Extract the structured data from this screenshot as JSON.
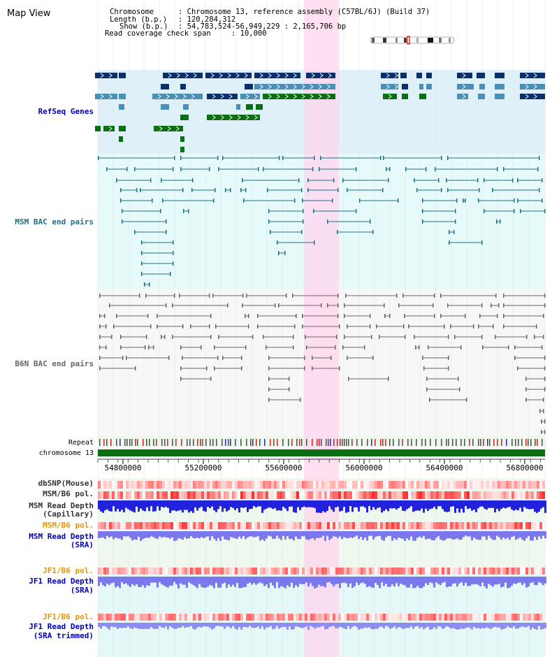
{
  "title": "Map View",
  "info": {
    "chrom_key": "Chromosome",
    "chrom_val": ": Chromosome 13, reference assembly (C57BL/6J) (Build 37)",
    "length_key": "Length (b.p.)",
    "length_val": ": 120,284,312",
    "show_key": "Show (b.p.)",
    "show_val": ": 54,783,524-56,949,229 : 2,165,706 bp",
    "span_key": "Read coverage check span",
    "span_val": ": 10,000"
  },
  "tracks": {
    "refseq": "RefSeq Genes",
    "msm_bac": "MSM BAC end pairs",
    "b6n_bac": "B6N BAC end pairs",
    "repeat": "Repeat",
    "chromosome": "chromosome 13",
    "dbsnp": "dbSNP(Mouse)",
    "msm_b6_pol_1": "MSM/B6 pol.",
    "msm_depth_cap_1": "MSM Read Depth",
    "msm_depth_cap_2": "(Capillary)",
    "msm_b6_pol_2": "MSM/B6 pol.",
    "msm_depth_sra_1": "MSM Read Depth",
    "msm_depth_sra_2": "(SRA)",
    "jf1_pol_1": "JF1/B6 pol.",
    "jf1_depth_1": "JF1 Read Depth",
    "jf1_depth_2": "(SRA)",
    "jf1_pol_2": "JF1/B6 pol.",
    "jf1_trim_1": "JF1 Read Depth",
    "jf1_trim_2": "(SRA trimmed)"
  },
  "axis": {
    "ticks": [
      "54800000",
      "55200000",
      "55600000",
      "56000000",
      "56400000",
      "56800000"
    ]
  },
  "colors": {
    "gene_dark": "#0b2f6b",
    "gene_mid": "#4a8fb5",
    "gene_green": "#0a6e12",
    "msm_bac": "#1f6f86",
    "b6n_bac": "#666666",
    "highlight": "#ffd6ee",
    "label_blue": "#0000bb",
    "label_orange": "#e69500",
    "label_teal": "#1f6f86"
  }
}
